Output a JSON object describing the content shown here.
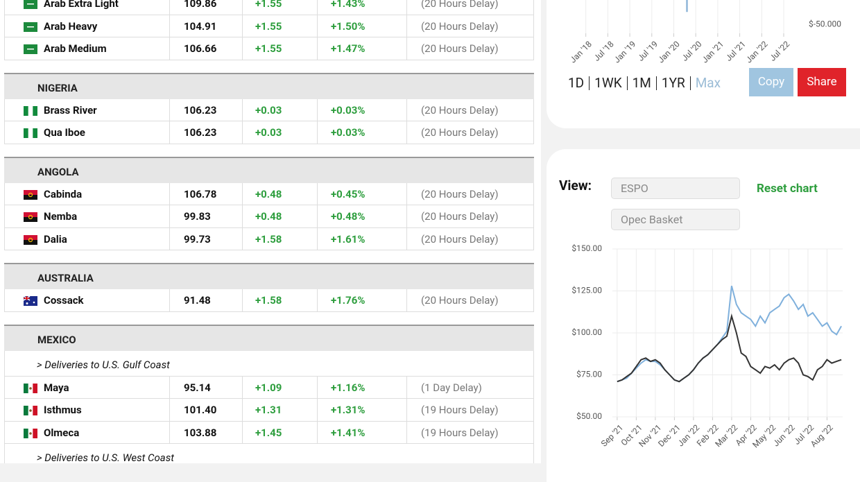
{
  "table": {
    "sections": [
      {
        "rows": [
          [
            "Arab Extra Light",
            "109.86",
            "+1.55",
            "+1.43%",
            "(20 Hours Delay)"
          ],
          [
            "Arab Heavy",
            "104.91",
            "+1.55",
            "+1.50%",
            "(20 Hours Delay)"
          ],
          [
            "Arab Medium",
            "106.66",
            "+1.55",
            "+1.47%",
            "(20 Hours Delay)"
          ]
        ]
      },
      {
        "name": "NIGERIA",
        "rows": [
          [
            "Brass River",
            "106.23",
            "+0.03",
            "+0.03%",
            "(20 Hours Delay)"
          ],
          [
            "Qua Iboe",
            "106.23",
            "+0.03",
            "+0.03%",
            "(20 Hours Delay)"
          ]
        ]
      },
      {
        "name": "ANGOLA",
        "rows": [
          [
            "Cabinda",
            "106.78",
            "+0.48",
            "+0.45%",
            "(20 Hours Delay)"
          ],
          [
            "Nemba",
            "99.83",
            "+0.48",
            "+0.48%",
            "(20 Hours Delay)"
          ],
          [
            "Dalia",
            "99.73",
            "+1.58",
            "+1.61%",
            "(20 Hours Delay)"
          ]
        ]
      },
      {
        "name": "AUSTRALIA",
        "rows": [
          [
            "Cossack",
            "91.48",
            "+1.58",
            "+1.76%",
            "(20 Hours Delay)"
          ]
        ]
      },
      {
        "name": "MEXICO",
        "rows": [
          {
            "subtitle": "> Deliveries to U.S. Gulf Coast"
          },
          [
            "Maya",
            "95.14",
            "+1.09",
            "+1.16%",
            "(1 Day Delay)"
          ],
          [
            "Isthmus",
            "101.40",
            "+1.31",
            "+1.31%",
            "(19 Hours Delay)"
          ],
          [
            "Olmeca",
            "103.88",
            "+1.45",
            "+1.41%",
            "(19 Hours Delay)"
          ],
          {
            "subtitle": "> Deliveries to U.S. West Coast"
          }
        ]
      }
    ]
  },
  "controls": {
    "periods": [
      "1D",
      "1WK",
      "1M",
      "1YR",
      "Max"
    ],
    "copy": "Copy",
    "share": "Share",
    "view_label": "View:",
    "selects": [
      "ESPO",
      "Opec Basket"
    ],
    "reset": "Reset chart"
  },
  "chart_data": [
    {
      "type": "line",
      "xlim": [
        2017.8,
        2022.8
      ],
      "xticks": [
        {
          "value": 2018,
          "label": "Jan '18"
        },
        {
          "value": 2018.5,
          "label": "Jul '18"
        },
        {
          "value": 2019,
          "label": "Jan '19"
        },
        {
          "value": 2019.5,
          "label": "Jul '19"
        },
        {
          "value": 2020,
          "label": "Jan '20"
        },
        {
          "value": 2020.5,
          "label": "Jul '20"
        },
        {
          "value": 2021,
          "label": "Jan '21"
        },
        {
          "value": 2021.5,
          "label": "Jul '21"
        },
        {
          "value": 2022,
          "label": "Jan '22"
        },
        {
          "value": 2022.5,
          "label": "Jul '22"
        }
      ],
      "ylim": [
        -60,
        40
      ],
      "yticks": [
        {
          "value": -50,
          "label": "$-50.000"
        }
      ],
      "grid": true,
      "series": [
        {
          "color": "#8fb6d8",
          "x": [
            2020.3,
            2020.3
          ],
          "values": [
            40,
            -36
          ]
        }
      ]
    },
    {
      "type": "line",
      "xlim": [
        -0.25,
        11.82
      ],
      "xticks": [
        {
          "value": 0,
          "label": "Sep '21"
        },
        {
          "value": 1,
          "label": "Oct '21"
        },
        {
          "value": 2,
          "label": "Nov '21"
        },
        {
          "value": 3,
          "label": "Dec '21"
        },
        {
          "value": 4,
          "label": "Jan '22"
        },
        {
          "value": 5,
          "label": "Feb '22"
        },
        {
          "value": 6,
          "label": "Mar '22"
        },
        {
          "value": 7,
          "label": "Apr '22"
        },
        {
          "value": 8,
          "label": "May '22"
        },
        {
          "value": 9,
          "label": "Jun '22"
        },
        {
          "value": 10,
          "label": "Jul '22"
        },
        {
          "value": 11,
          "label": "Aug '22"
        }
      ],
      "ylim": [
        50,
        150
      ],
      "yticks": [
        {
          "value": 50,
          "label": "$50.00"
        },
        {
          "value": 75,
          "label": "$75.00"
        },
        {
          "value": 100,
          "label": "$100.00"
        },
        {
          "value": 125,
          "label": "$125.00"
        },
        {
          "value": 150,
          "label": "$150.00"
        }
      ],
      "grid": true,
      "x": [
        0,
        0.25,
        0.5,
        0.75,
        1,
        1.25,
        1.5,
        1.75,
        2,
        2.25,
        2.5,
        2.75,
        3,
        3.25,
        3.5,
        3.75,
        4,
        4.25,
        4.5,
        4.75,
        5,
        5.25,
        5.5,
        5.75,
        6,
        6.25,
        6.5,
        6.75,
        7,
        7.25,
        7.5,
        7.75,
        8,
        8.25,
        8.5,
        8.75,
        9,
        9.25,
        9.5,
        9.75,
        10,
        10.25,
        10.5,
        10.75,
        11,
        11.25,
        11.5,
        11.75
      ],
      "series": [
        {
          "color": "#7fb0dc",
          "values": [
            71,
            72,
            73,
            76,
            79,
            82,
            84,
            83,
            83,
            81,
            78,
            75,
            72,
            71,
            73,
            75,
            78,
            82,
            85,
            87,
            90,
            93,
            97,
            101,
            128,
            117,
            112,
            110,
            108,
            104,
            110,
            106,
            112,
            114,
            116,
            121,
            123,
            119,
            114,
            117,
            110,
            112,
            108,
            104,
            106,
            101,
            99,
            104
          ]
        },
        {
          "color": "#333333",
          "values": [
            71,
            72,
            74,
            76,
            80,
            84,
            85,
            83,
            84,
            82,
            78,
            75,
            72,
            71,
            73,
            75,
            78,
            82,
            85,
            87,
            90,
            93,
            96,
            98,
            110,
            100,
            88,
            86,
            80,
            78,
            76,
            80,
            79,
            81,
            78,
            82,
            84,
            85,
            82,
            75,
            74,
            72,
            78,
            80,
            84,
            82,
            83,
            84
          ]
        }
      ]
    }
  ]
}
